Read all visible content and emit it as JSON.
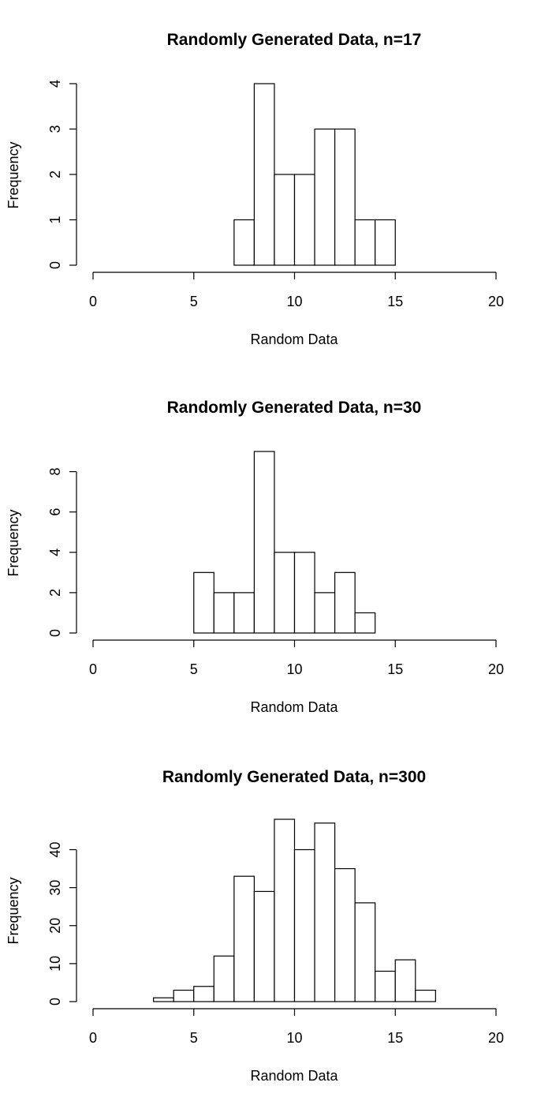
{
  "chart_data": [
    {
      "type": "bar",
      "subtype": "histogram",
      "title": "Randomly Generated Data, n=17",
      "xlabel": "Random Data",
      "ylabel": "Frequency",
      "xlim": [
        0,
        20
      ],
      "ylim": [
        0,
        4
      ],
      "xticks": [
        0,
        5,
        10,
        15,
        20
      ],
      "yticks": [
        0,
        1,
        2,
        3,
        4
      ],
      "bin_width": 1,
      "bins": [
        {
          "x0": 7,
          "x1": 8,
          "count": 1
        },
        {
          "x0": 8,
          "x1": 9,
          "count": 4
        },
        {
          "x0": 9,
          "x1": 10,
          "count": 2
        },
        {
          "x0": 10,
          "x1": 11,
          "count": 2
        },
        {
          "x0": 11,
          "x1": 12,
          "count": 3
        },
        {
          "x0": 12,
          "x1": 13,
          "count": 3
        },
        {
          "x0": 13,
          "x1": 14,
          "count": 1
        },
        {
          "x0": 14,
          "x1": 15,
          "count": 1
        }
      ],
      "grid": false,
      "fill_color": "#ffffff",
      "stroke_color": "#000000"
    },
    {
      "type": "bar",
      "subtype": "histogram",
      "title": "Randomly Generated Data, n=30",
      "xlabel": "Random Data",
      "ylabel": "Frequency",
      "xlim": [
        0,
        20
      ],
      "ylim": [
        0,
        9
      ],
      "xticks": [
        0,
        5,
        10,
        15,
        20
      ],
      "yticks": [
        0,
        2,
        4,
        6,
        8
      ],
      "bin_width": 1,
      "bins": [
        {
          "x0": 5,
          "x1": 6,
          "count": 3
        },
        {
          "x0": 6,
          "x1": 7,
          "count": 2
        },
        {
          "x0": 7,
          "x1": 8,
          "count": 2
        },
        {
          "x0": 8,
          "x1": 9,
          "count": 9
        },
        {
          "x0": 9,
          "x1": 10,
          "count": 4
        },
        {
          "x0": 10,
          "x1": 11,
          "count": 4
        },
        {
          "x0": 11,
          "x1": 12,
          "count": 2
        },
        {
          "x0": 12,
          "x1": 13,
          "count": 3
        },
        {
          "x0": 13,
          "x1": 14,
          "count": 1
        }
      ],
      "grid": false,
      "fill_color": "#ffffff",
      "stroke_color": "#000000"
    },
    {
      "type": "bar",
      "subtype": "histogram",
      "title": "Randomly Generated Data, n=300",
      "xlabel": "Random Data",
      "ylabel": "Frequency",
      "xlim": [
        0,
        20
      ],
      "ylim": [
        0,
        48
      ],
      "xticks": [
        0,
        5,
        10,
        15,
        20
      ],
      "yticks": [
        0,
        10,
        20,
        30,
        40
      ],
      "bin_width": 1,
      "bins": [
        {
          "x0": 3,
          "x1": 4,
          "count": 1
        },
        {
          "x0": 4,
          "x1": 5,
          "count": 3
        },
        {
          "x0": 5,
          "x1": 6,
          "count": 4
        },
        {
          "x0": 6,
          "x1": 7,
          "count": 12
        },
        {
          "x0": 7,
          "x1": 8,
          "count": 33
        },
        {
          "x0": 8,
          "x1": 9,
          "count": 29
        },
        {
          "x0": 9,
          "x1": 10,
          "count": 48
        },
        {
          "x0": 10,
          "x1": 11,
          "count": 40
        },
        {
          "x0": 11,
          "x1": 12,
          "count": 47
        },
        {
          "x0": 12,
          "x1": 13,
          "count": 35
        },
        {
          "x0": 13,
          "x1": 14,
          "count": 26
        },
        {
          "x0": 14,
          "x1": 15,
          "count": 8
        },
        {
          "x0": 15,
          "x1": 16,
          "count": 11
        },
        {
          "x0": 16,
          "x1": 17,
          "count": 3
        }
      ],
      "grid": false,
      "fill_color": "#ffffff",
      "stroke_color": "#000000"
    }
  ]
}
